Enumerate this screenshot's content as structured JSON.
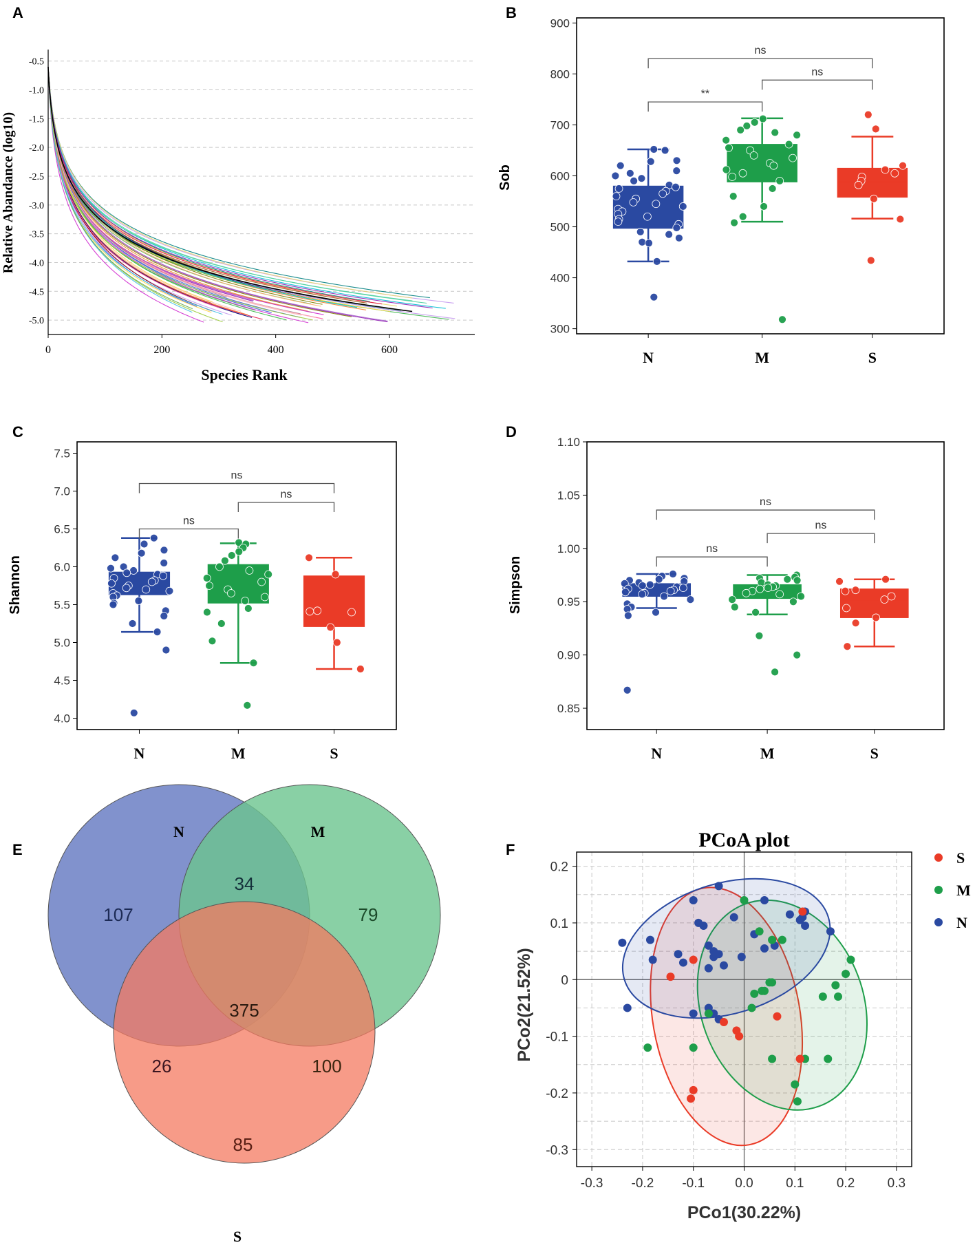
{
  "colors": {
    "N": "#2a49a1",
    "M": "#1e9e4a",
    "S": "#ea3b27",
    "axis": "#000000",
    "grid": "#c8c8c8",
    "bracket": "#555555",
    "venn_N": "#6b7fc4",
    "venn_M": "#6cc48e",
    "venn_S": "#f47a60"
  },
  "chart_data": [
    {
      "panel": "A",
      "type": "line",
      "title": "",
      "xlabel": "Species Rank",
      "ylabel": "Relative Abandance (log10)",
      "xlim": [
        0,
        750
      ],
      "ylim": [
        -5.25,
        -0.3
      ],
      "xticks": [
        0,
        200,
        400,
        600
      ],
      "xtick_labels": [
        "0",
        "200",
        "400",
        "600"
      ],
      "yticks": [
        -0.5,
        -1.0,
        -1.5,
        -2.0,
        -2.5,
        -3.0,
        -3.5,
        -4.0,
        -4.5,
        -5.0
      ],
      "ytick_labels": [
        "-0.5",
        "-1.0",
        "-1.5",
        "-2.0",
        "-2.5",
        "-3.0",
        "-3.5",
        "-4.0",
        "-4.5",
        "-5.0"
      ],
      "grid": "horizontal dashed",
      "series_count": 60,
      "series_min_rank": 250,
      "series_max_rank": 720
    },
    {
      "panel": "B",
      "type": "box",
      "ylabel": "Sob",
      "categories": [
        "N",
        "M",
        "S"
      ],
      "ylim": [
        290,
        910
      ],
      "yticks": [
        300,
        400,
        500,
        600,
        700,
        800,
        900
      ],
      "ytick_labels": [
        "300",
        "400",
        "500",
        "600",
        "700",
        "800",
        "900"
      ],
      "boxes": [
        {
          "name": "N",
          "q1": 497,
          "median": 525,
          "q3": 580,
          "wlow": 432,
          "whigh": 652
        },
        {
          "name": "M",
          "q1": 588,
          "median": 625,
          "q3": 662,
          "wlow": 510,
          "whigh": 713
        },
        {
          "name": "S",
          "q1": 558,
          "median": 588,
          "q3": 615,
          "wlow": 516,
          "whigh": 677
        }
      ],
      "points": {
        "N": [
          650,
          652,
          630,
          628,
          620,
          610,
          605,
          600,
          595,
          590,
          582,
          578,
          575,
          570,
          565,
          560,
          555,
          548,
          545,
          540,
          535,
          530,
          525,
          520,
          515,
          510,
          505,
          498,
          490,
          485,
          478,
          470,
          468,
          432,
          362
        ],
        "M": [
          712,
          705,
          698,
          690,
          685,
          680,
          670,
          662,
          655,
          650,
          640,
          635,
          625,
          620,
          612,
          605,
          598,
          590,
          575,
          560,
          540,
          520,
          508,
          318
        ],
        "S": [
          720,
          692,
          620,
          612,
          605,
          598,
          590,
          582,
          555,
          515,
          434
        ]
      },
      "comparisons": [
        {
          "from": "N",
          "to": "S",
          "label": "ns",
          "y": 830
        },
        {
          "from": "M",
          "to": "S",
          "label": "ns",
          "y": 788
        },
        {
          "from": "N",
          "to": "M",
          "label": "**",
          "y": 745
        }
      ]
    },
    {
      "panel": "C",
      "type": "box",
      "ylabel": "Shannon",
      "categories": [
        "N",
        "M",
        "S"
      ],
      "ylim": [
        3.85,
        7.65
      ],
      "yticks": [
        4.0,
        4.5,
        5.0,
        5.5,
        6.0,
        6.5,
        7.0,
        7.5
      ],
      "ytick_labels": [
        "4.0",
        "4.5",
        "5.0",
        "5.5",
        "6.0",
        "6.5",
        "7.0",
        "7.5"
      ],
      "boxes": [
        {
          "name": "N",
          "q1": 5.63,
          "median": 5.8,
          "q3": 5.93,
          "wlow": 5.14,
          "whigh": 6.38
        },
        {
          "name": "M",
          "q1": 5.52,
          "median": 5.85,
          "q3": 6.03,
          "wlow": 4.73,
          "whigh": 6.31
        },
        {
          "name": "S",
          "q1": 5.21,
          "median": 5.5,
          "q3": 5.88,
          "wlow": 4.65,
          "whigh": 6.12
        }
      ],
      "points": {
        "N": [
          6.38,
          6.3,
          6.22,
          6.18,
          6.12,
          6.05,
          6.0,
          5.98,
          5.95,
          5.92,
          5.9,
          5.88,
          5.85,
          5.82,
          5.8,
          5.78,
          5.75,
          5.72,
          5.7,
          5.68,
          5.65,
          5.62,
          5.6,
          5.55,
          5.52,
          5.5,
          5.42,
          5.35,
          5.25,
          5.14,
          4.9,
          4.07
        ],
        "M": [
          6.32,
          6.3,
          6.25,
          6.2,
          6.15,
          6.08,
          6.0,
          5.95,
          5.9,
          5.85,
          5.8,
          5.75,
          5.7,
          5.65,
          5.6,
          5.55,
          5.45,
          5.4,
          5.25,
          5.02,
          4.73,
          4.17
        ],
        "S": [
          6.12,
          5.9,
          5.42,
          5.41,
          5.4,
          5.2,
          5.0,
          4.65
        ]
      },
      "comparisons": [
        {
          "from": "N",
          "to": "S",
          "label": "ns",
          "y": 7.1
        },
        {
          "from": "M",
          "to": "S",
          "label": "ns",
          "y": 6.85
        },
        {
          "from": "N",
          "to": "M",
          "label": "ns",
          "y": 6.5
        }
      ]
    },
    {
      "panel": "D",
      "type": "box",
      "ylabel": "Simpson",
      "categories": [
        "N",
        "M",
        "S"
      ],
      "ylim": [
        0.83,
        1.1
      ],
      "yticks": [
        0.85,
        0.9,
        0.95,
        1.0,
        1.05,
        1.1
      ],
      "ytick_labels": [
        "0.85",
        "0.90",
        "0.95",
        "1.00",
        "1.05",
        "1.10"
      ],
      "boxes": [
        {
          "name": "N",
          "q1": 0.955,
          "median": 0.962,
          "q3": 0.967,
          "wlow": 0.944,
          "whigh": 0.976
        },
        {
          "name": "M",
          "q1": 0.953,
          "median": 0.96,
          "q3": 0.966,
          "wlow": 0.938,
          "whigh": 0.975
        },
        {
          "name": "S",
          "q1": 0.935,
          "median": 0.952,
          "q3": 0.962,
          "wlow": 0.908,
          "whigh": 0.971
        }
      ],
      "points": {
        "N": [
          0.976,
          0.974,
          0.972,
          0.971,
          0.97,
          0.969,
          0.968,
          0.967,
          0.966,
          0.965,
          0.964,
          0.963,
          0.962,
          0.961,
          0.96,
          0.959,
          0.958,
          0.957,
          0.955,
          0.952,
          0.948,
          0.945,
          0.943,
          0.94,
          0.937,
          0.867
        ],
        "M": [
          0.975,
          0.973,
          0.972,
          0.971,
          0.97,
          0.968,
          0.966,
          0.965,
          0.964,
          0.963,
          0.962,
          0.96,
          0.958,
          0.957,
          0.955,
          0.952,
          0.95,
          0.945,
          0.94,
          0.918,
          0.9,
          0.884
        ],
        "S": [
          0.971,
          0.969,
          0.961,
          0.96,
          0.955,
          0.952,
          0.944,
          0.935,
          0.93,
          0.908
        ]
      },
      "comparisons": [
        {
          "from": "N",
          "to": "S",
          "label": "ns",
          "y": 1.036
        },
        {
          "from": "M",
          "to": "S",
          "label": "ns",
          "y": 1.014
        },
        {
          "from": "N",
          "to": "M",
          "label": "ns",
          "y": 0.992
        }
      ]
    },
    {
      "panel": "E",
      "type": "venn",
      "sets": [
        "N",
        "M",
        "S"
      ],
      "regions": {
        "N_only": 107,
        "M_only": 79,
        "S_only": 85,
        "N_M": 34,
        "N_S": 26,
        "M_S": 100,
        "N_M_S": 375
      }
    },
    {
      "panel": "F",
      "type": "scatter",
      "title": "PCoA plot",
      "xlabel": "PCo1(30.22%)",
      "ylabel": "PCo2(21.52%)",
      "xlim": [
        -0.3,
        0.3
      ],
      "ylim": [
        -0.3,
        0.2
      ],
      "xticks": [
        -0.3,
        -0.2,
        -0.1,
        0.0,
        0.1,
        0.2,
        0.3
      ],
      "xtick_labels": [
        "-0.3",
        "-0.2",
        "-0.1",
        "0.0",
        "0.1",
        "0.2",
        "0.3"
      ],
      "yticks": [
        -0.3,
        -0.2,
        -0.1,
        0.0,
        0.1,
        0.2
      ],
      "ytick_labels": [
        "-0.3",
        "-0.2",
        "-0.1",
        "0",
        "0.1",
        "0.2"
      ],
      "legend": [
        "S",
        "M",
        "N"
      ],
      "legend_position": "right",
      "series": [
        {
          "name": "N",
          "points": [
            [
              -0.24,
              0.065
            ],
            [
              -0.185,
              0.07
            ],
            [
              -0.18,
              0.035
            ],
            [
              -0.13,
              0.045
            ],
            [
              -0.1,
              0.14
            ],
            [
              -0.09,
              0.1
            ],
            [
              -0.08,
              0.095
            ],
            [
              -0.07,
              0.06
            ],
            [
              -0.06,
              0.05
            ],
            [
              -0.05,
              0.165
            ],
            [
              -0.05,
              0.045
            ],
            [
              -0.04,
              0.025
            ],
            [
              -0.02,
              0.11
            ],
            [
              -0.005,
              0.04
            ],
            [
              0.02,
              0.08
            ],
            [
              0.04,
              0.14
            ],
            [
              0.04,
              0.055
            ],
            [
              0.06,
              0.06
            ],
            [
              0.09,
              0.115
            ],
            [
              0.11,
              0.105
            ],
            [
              0.115,
              0.11
            ],
            [
              0.12,
              0.12
            ],
            [
              0.12,
              0.095
            ],
            [
              0.17,
              0.085
            ],
            [
              -0.23,
              -0.05
            ],
            [
              -0.1,
              -0.06
            ],
            [
              -0.07,
              -0.05
            ],
            [
              -0.06,
              -0.06
            ],
            [
              -0.05,
              -0.07
            ],
            [
              -0.06,
              0.04
            ],
            [
              -0.07,
              0.02
            ],
            [
              -0.12,
              0.03
            ]
          ]
        },
        {
          "name": "M",
          "points": [
            [
              0.0,
              0.14
            ],
            [
              0.03,
              0.085
            ],
            [
              0.055,
              0.07
            ],
            [
              0.075,
              0.07
            ],
            [
              0.055,
              -0.005
            ],
            [
              0.05,
              -0.005
            ],
            [
              0.04,
              -0.02
            ],
            [
              0.035,
              -0.02
            ],
            [
              0.02,
              -0.025
            ],
            [
              0.015,
              -0.05
            ],
            [
              -0.1,
              -0.12
            ],
            [
              -0.19,
              -0.12
            ],
            [
              -0.07,
              -0.06
            ],
            [
              0.055,
              -0.14
            ],
            [
              0.1,
              -0.185
            ],
            [
              0.105,
              -0.215
            ],
            [
              0.12,
              -0.14
            ],
            [
              0.155,
              -0.03
            ],
            [
              0.165,
              -0.14
            ],
            [
              0.18,
              -0.01
            ],
            [
              0.185,
              -0.03
            ],
            [
              0.2,
              0.01
            ],
            [
              0.21,
              0.035
            ]
          ]
        },
        {
          "name": "S",
          "points": [
            [
              0.115,
              0.12
            ],
            [
              -0.1,
              0.035
            ],
            [
              -0.145,
              0.005
            ],
            [
              0.065,
              -0.065
            ],
            [
              -0.1,
              -0.195
            ],
            [
              -0.105,
              -0.21
            ],
            [
              -0.015,
              -0.09
            ],
            [
              -0.01,
              -0.1
            ],
            [
              -0.04,
              -0.075
            ],
            [
              0.11,
              -0.14
            ]
          ]
        }
      ],
      "ellipses": [
        {
          "name": "N",
          "cx": -0.035,
          "cy": 0.055,
          "rx": 0.21,
          "ry": 0.115,
          "angle_deg": 17
        },
        {
          "name": "M",
          "cx": 0.075,
          "cy": -0.045,
          "rx": 0.16,
          "ry": 0.19,
          "angle_deg": 20
        },
        {
          "name": "S",
          "cx": -0.035,
          "cy": -0.065,
          "rx": 0.145,
          "ry": 0.23,
          "angle_deg": 10
        }
      ]
    }
  ],
  "panels": {
    "A": {
      "letter": "A"
    },
    "B": {
      "letter": "B"
    },
    "C": {
      "letter": "C"
    },
    "D": {
      "letter": "D"
    },
    "E": {
      "letter": "E",
      "label_N": "N",
      "label_M": "M",
      "label_S": "S"
    },
    "F": {
      "letter": "F"
    }
  }
}
